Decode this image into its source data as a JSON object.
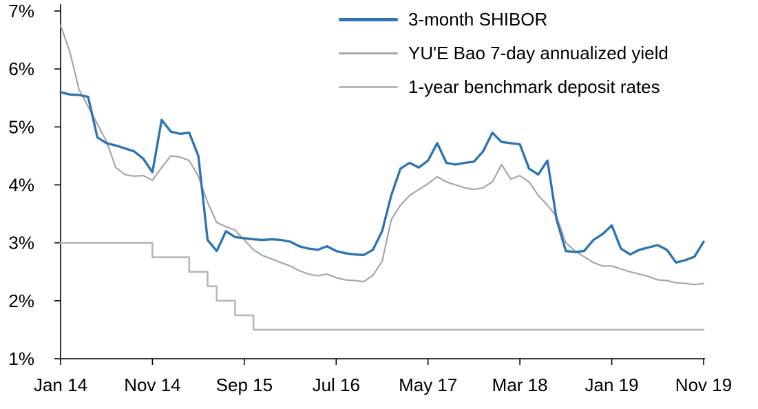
{
  "chart_data": {
    "type": "line",
    "title": "",
    "x_start": "Jan 2014",
    "x_end": "Nov 2019",
    "x_frequency": "monthly",
    "x_tick_labels": [
      "Jan 14",
      "Nov 14",
      "Sep 15",
      "Jul 16",
      "May 17",
      "Mar 18",
      "Jan 19",
      "Nov 19"
    ],
    "x_tick_indices": [
      0,
      10,
      20,
      30,
      40,
      50,
      60,
      70
    ],
    "y_ticks": [
      1,
      2,
      3,
      4,
      5,
      6,
      7
    ],
    "y_tick_labels": [
      "1%",
      "2%",
      "3%",
      "4%",
      "5%",
      "6%",
      "7%"
    ],
    "ylim": [
      1,
      7
    ],
    "grid": false,
    "legend_position": "top-inside",
    "axis_color": "#000000",
    "series": [
      {
        "name": "3-month SHIBOR",
        "color": "#2E74B5",
        "width": 3.4,
        "legend_thickness": 5,
        "style": "line",
        "values": [
          5.6,
          5.56,
          5.55,
          5.52,
          4.82,
          4.72,
          4.68,
          4.63,
          4.58,
          4.45,
          4.22,
          5.12,
          4.92,
          4.88,
          4.9,
          4.5,
          3.05,
          2.86,
          3.2,
          3.1,
          3.08,
          3.06,
          3.05,
          3.06,
          3.05,
          3.02,
          2.94,
          2.9,
          2.88,
          2.94,
          2.86,
          2.82,
          2.8,
          2.79,
          2.88,
          3.2,
          3.82,
          4.28,
          4.38,
          4.3,
          4.42,
          4.72,
          4.38,
          4.35,
          4.38,
          4.4,
          4.58,
          4.9,
          4.74,
          4.72,
          4.7,
          4.28,
          4.18,
          4.42,
          3.4,
          2.86,
          2.84,
          2.86,
          3.05,
          3.15,
          3.3,
          2.9,
          2.8,
          2.88,
          2.92,
          2.96,
          2.88,
          2.66,
          2.7,
          2.76,
          3.02
        ]
      },
      {
        "name": "YU'E Bao 7-day annualized yield",
        "color": "#A6A6A6",
        "width": 2.2,
        "legend_thickness": 3,
        "style": "line",
        "values": [
          6.75,
          6.3,
          5.65,
          5.35,
          5.05,
          4.75,
          4.3,
          4.18,
          4.15,
          4.16,
          4.08,
          4.3,
          4.5,
          4.48,
          4.42,
          4.15,
          3.7,
          3.35,
          3.28,
          3.22,
          3.05,
          2.88,
          2.78,
          2.72,
          2.66,
          2.6,
          2.52,
          2.46,
          2.43,
          2.46,
          2.4,
          2.36,
          2.35,
          2.33,
          2.44,
          2.68,
          3.4,
          3.65,
          3.82,
          3.92,
          4.02,
          4.14,
          4.05,
          4.0,
          3.95,
          3.92,
          3.95,
          4.05,
          4.35,
          4.1,
          4.16,
          4.05,
          3.82,
          3.65,
          3.45,
          3.0,
          2.86,
          2.76,
          2.66,
          2.6,
          2.6,
          2.55,
          2.5,
          2.46,
          2.42,
          2.36,
          2.35,
          2.31,
          2.3,
          2.28,
          2.3
        ]
      },
      {
        "name": "1-year benchmark deposit rates",
        "color": "#B7B7B7",
        "width": 2.6,
        "legend_thickness": 3,
        "style": "step",
        "values": [
          3.0,
          3.0,
          3.0,
          3.0,
          3.0,
          3.0,
          3.0,
          3.0,
          3.0,
          3.0,
          2.75,
          2.75,
          2.75,
          2.75,
          2.5,
          2.5,
          2.25,
          2.0,
          2.0,
          1.75,
          1.75,
          1.5,
          1.5,
          1.5,
          1.5,
          1.5,
          1.5,
          1.5,
          1.5,
          1.5,
          1.5,
          1.5,
          1.5,
          1.5,
          1.5,
          1.5,
          1.5,
          1.5,
          1.5,
          1.5,
          1.5,
          1.5,
          1.5,
          1.5,
          1.5,
          1.5,
          1.5,
          1.5,
          1.5,
          1.5,
          1.5,
          1.5,
          1.5,
          1.5,
          1.5,
          1.5,
          1.5,
          1.5,
          1.5,
          1.5,
          1.5,
          1.5,
          1.5,
          1.5,
          1.5,
          1.5,
          1.5,
          1.5,
          1.5,
          1.5,
          1.5
        ]
      }
    ]
  }
}
